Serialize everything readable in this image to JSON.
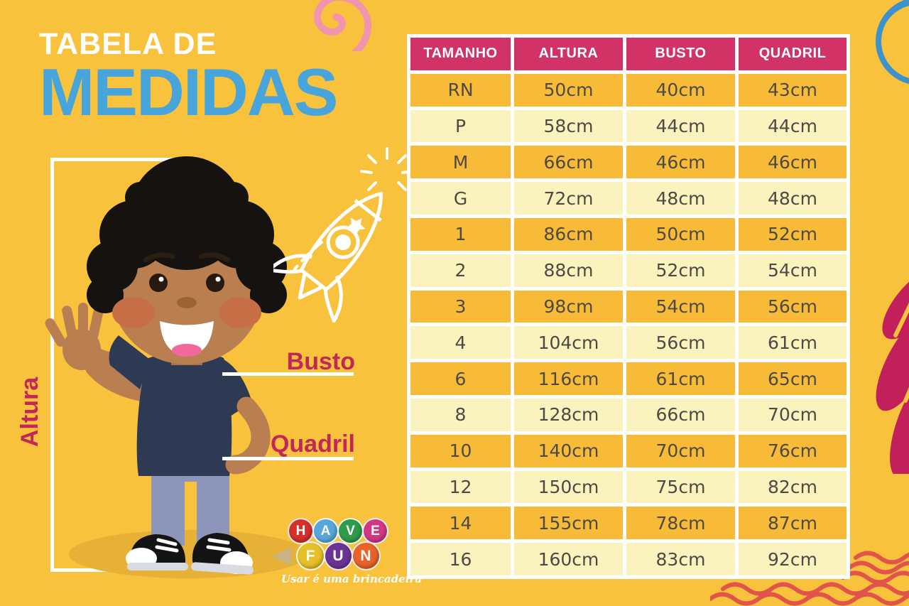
{
  "title": {
    "line1": "TABELA DE",
    "line2": "MEDIDAS"
  },
  "labels": {
    "altura": "Altura",
    "busto": "Busto",
    "quadril": "Quadril"
  },
  "logo": {
    "word1": [
      {
        "char": "H",
        "color": "#D6302B"
      },
      {
        "char": "A",
        "color": "#58A7D9"
      },
      {
        "char": "V",
        "color": "#2F9B4B"
      },
      {
        "char": "E",
        "color": "#D23784"
      }
    ],
    "word2": [
      {
        "char": "F",
        "color": "#E5C028"
      },
      {
        "char": "U",
        "color": "#6B3494"
      },
      {
        "char": "N",
        "color": "#E8622A"
      }
    ],
    "tagline": "Usar é uma brincadeira"
  },
  "chart_data": {
    "type": "table",
    "title": "Tabela de Medidas",
    "columns": [
      "TAMANHO",
      "ALTURA",
      "BUSTO",
      "QUADRIL"
    ],
    "rows": [
      [
        "RN",
        "50cm",
        "40cm",
        "43cm"
      ],
      [
        "P",
        "58cm",
        "44cm",
        "44cm"
      ],
      [
        "M",
        "66cm",
        "46cm",
        "46cm"
      ],
      [
        "G",
        "72cm",
        "48cm",
        "48cm"
      ],
      [
        "1",
        "86cm",
        "50cm",
        "52cm"
      ],
      [
        "2",
        "88cm",
        "52cm",
        "54cm"
      ],
      [
        "3",
        "98cm",
        "54cm",
        "56cm"
      ],
      [
        "4",
        "104cm",
        "56cm",
        "61cm"
      ],
      [
        "6",
        "116cm",
        "61cm",
        "65cm"
      ],
      [
        "8",
        "128cm",
        "66cm",
        "70cm"
      ],
      [
        "10",
        "140cm",
        "70cm",
        "76cm"
      ],
      [
        "12",
        "150cm",
        "75cm",
        "82cm"
      ],
      [
        "14",
        "155cm",
        "78cm",
        "87cm"
      ],
      [
        "16",
        "160cm",
        "83cm",
        "92cm"
      ]
    ]
  },
  "colors": {
    "bg": "#F8C23C",
    "header_bg": "#D13366",
    "row_dark": "#F7BB38",
    "row_light": "#FBF3BE",
    "cell_text": "#4D4A45",
    "title_blue": "#47A5DB",
    "label_crimson": "#C32758",
    "spiral_pink": "#F295AC",
    "scribble_blue": "#3D92CC",
    "petal_magenta": "#C2205A",
    "wave_red": "#E25449"
  }
}
